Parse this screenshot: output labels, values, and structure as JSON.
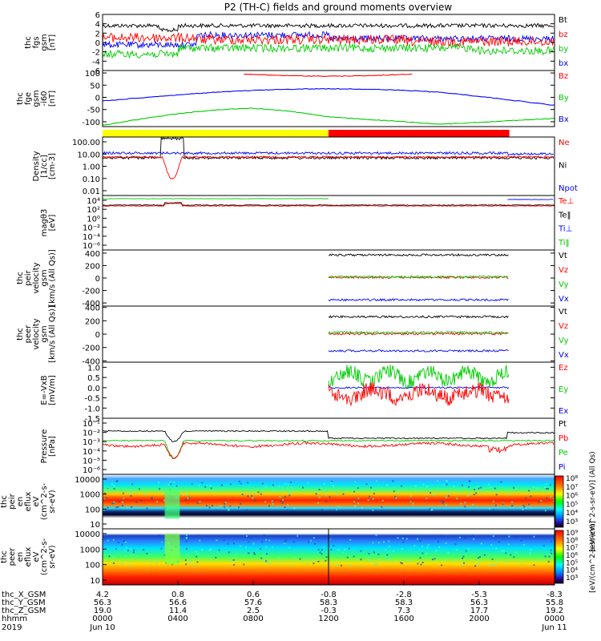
{
  "title": "P2 (TH-C) fields and ground moments overview",
  "chart_data": [
    {
      "type": "line",
      "ylabel_lines": [
        "thc",
        "fgs",
        "gsm",
        "[nT]"
      ],
      "ylim": [
        -6,
        6
      ],
      "yticks": [
        6,
        4,
        2,
        0,
        -2,
        -4,
        -6
      ],
      "ytick_labels": [
        "6",
        "4",
        "2",
        "0",
        "-2",
        "-4",
        "-6"
      ],
      "legend": [
        {
          "name": "Bt",
          "color": "#000000"
        },
        {
          "name": "bz",
          "color": "#ff0000"
        },
        {
          "name": "by",
          "color": "#00cc00"
        },
        {
          "name": "bx",
          "color": "#0000ff"
        }
      ]
    },
    {
      "type": "line",
      "ylabel_lines": [
        "thc",
        "fge",
        "gsm",
        "-i60",
        "[nT]"
      ],
      "ylim": [
        -120,
        110
      ],
      "yticks": [
        100,
        50,
        0,
        -50,
        -100
      ],
      "ytick_labels": [
        "100",
        "50",
        "0",
        "-50",
        "-100"
      ],
      "legend": [
        {
          "name": "Bz",
          "color": "#ff0000"
        },
        {
          "name": "By",
          "color": "#00cc00"
        },
        {
          "name": "Bx",
          "color": "#0000ff"
        }
      ]
    },
    {
      "type": "area",
      "mode_bar": [
        {
          "from_hours": 0,
          "to_hours": 12.0,
          "color": "#ffff00"
        },
        {
          "from_hours": 12.0,
          "to_hours": 21.6,
          "color": "#ff0000"
        }
      ]
    },
    {
      "type": "line",
      "log_scale": true,
      "ylabel_lines": [
        "Density",
        "[1/cc]",
        "[cm-3]"
      ],
      "ytick_labels": [
        "100.00",
        "10.00",
        "1.00",
        "0.10",
        "0.01"
      ],
      "legend": [
        {
          "name": "Ne",
          "color": "#ff0000"
        },
        {
          "name": "Ni",
          "color": "#000000"
        },
        {
          "name": "Npot",
          "color": "#0000ff"
        }
      ]
    },
    {
      "type": "line",
      "log_scale": true,
      "ylabel_lines": [
        "magθ3",
        "[eV]"
      ],
      "ytick_labels": [
        "10⁴",
        "10²",
        "10⁰",
        "10⁻²",
        "10⁻⁴",
        "10⁻⁶"
      ],
      "legend": [
        {
          "name": "Te⊥",
          "color": "#ff0000"
        },
        {
          "name": "Te‖",
          "color": "#000000"
        },
        {
          "name": "Ti⊥",
          "color": "#0000ff"
        },
        {
          "name": "Ti‖",
          "color": "#00cc00"
        }
      ]
    },
    {
      "type": "line",
      "ylabel_lines": [
        "thc",
        "peir",
        "velocity",
        "gsm",
        "[km/s (All Qs)]"
      ],
      "ylim": [
        -450,
        450
      ],
      "yticks": [
        400,
        200,
        0,
        -200,
        -400
      ],
      "ytick_labels": [
        "400",
        "200",
        "0",
        "-200",
        "-400"
      ],
      "legend": [
        {
          "name": "Vt",
          "color": "#000000"
        },
        {
          "name": "Vz",
          "color": "#ff0000"
        },
        {
          "name": "Vy",
          "color": "#00cc00"
        },
        {
          "name": "Vx",
          "color": "#0000ff"
        }
      ],
      "series": [
        {
          "name": "Vt",
          "level": 370
        },
        {
          "name": "Vz",
          "level": 10
        },
        {
          "name": "Vy",
          "level": 20
        },
        {
          "name": "Vx",
          "level": -350
        }
      ]
    },
    {
      "type": "line",
      "ylabel_lines": [
        "thc",
        "peer",
        "velocity",
        "gsm",
        "[km/s (All Qs)]"
      ],
      "ylim": [
        -420,
        420
      ],
      "yticks": [
        400,
        200,
        0,
        -200,
        -400
      ],
      "ytick_labels": [
        "400",
        "200",
        "0",
        "-200",
        "-400"
      ],
      "legend": [
        {
          "name": "Vt",
          "color": "#000000"
        },
        {
          "name": "Vz",
          "color": "#ff0000"
        },
        {
          "name": "Vy",
          "color": "#00cc00"
        },
        {
          "name": "Vx",
          "color": "#0000ff"
        }
      ],
      "series": [
        {
          "name": "Vt",
          "level": 260
        },
        {
          "name": "Vz",
          "level": 5
        },
        {
          "name": "Vy",
          "level": 25
        },
        {
          "name": "Vx",
          "level": -250
        }
      ]
    },
    {
      "type": "line",
      "ylabel_lines": [
        "E=-VxB",
        "[mV/m]"
      ],
      "ylim": [
        -1.5,
        1.25
      ],
      "yticks": [
        1.0,
        0.5,
        0.0,
        -0.5,
        -1.0,
        -1.5
      ],
      "ytick_labels": [
        "1.0",
        "0.5",
        "0.0",
        "-0.5",
        "-1.0",
        "-1.5"
      ],
      "legend": [
        {
          "name": "Ez",
          "color": "#ff0000"
        },
        {
          "name": "Ey",
          "color": "#00cc00"
        },
        {
          "name": "Ex",
          "color": "#0000ff"
        }
      ]
    },
    {
      "type": "line",
      "log_scale": true,
      "ylabel_lines": [
        "Pressure",
        "[nPa]"
      ],
      "ytick_labels": [
        "10⁻¹",
        "10⁻²",
        "10⁻³",
        "10⁻⁴",
        "10⁻⁵",
        "10⁻⁶"
      ],
      "legend": [
        {
          "name": "Pt",
          "color": "#000000"
        },
        {
          "name": "Pb",
          "color": "#ff0000"
        },
        {
          "name": "Pe",
          "color": "#00cc00"
        },
        {
          "name": "Pi",
          "color": "#0000ff"
        }
      ]
    },
    {
      "type": "heatmap",
      "log_scale": true,
      "ylabel_lines": [
        "thc",
        "peir",
        "en",
        "eflux",
        "eV",
        "(cm^2-s-",
        "sr-eV)"
      ],
      "ytick_labels": [
        "10000",
        "1000",
        "100",
        "10"
      ],
      "colorbar": {
        "label": "[eV/(cm^2-s-sr-eV)] (All Qs)",
        "tick_labels": [
          "10⁸",
          "10⁷",
          "10⁶",
          "10⁵",
          "10⁴",
          "10³"
        ]
      }
    },
    {
      "type": "heatmap",
      "log_scale": true,
      "ylabel_lines": [
        "thc",
        "peer",
        "en",
        "eflux",
        "eV",
        "(cm^2-s-",
        "sr-eV)"
      ],
      "ytick_labels": [
        "10000",
        "1000",
        "100",
        "10"
      ],
      "colorbar": {
        "label": "[eV/(cm^2-s-sr-eV)]",
        "tick_labels": [
          "10⁹",
          "10⁸",
          "10⁷",
          "10⁶",
          "10⁵",
          "10⁴",
          "10³"
        ]
      }
    }
  ],
  "xaxis": {
    "row_labels": [
      "thc_X_GSM",
      "thc_Y_GSM",
      "thc_Z_GSM",
      "hhmm",
      "2019"
    ],
    "ticks": [
      {
        "hours": 0,
        "values": [
          "4.2",
          "56.3",
          "19.0",
          "0000",
          "Jun 10"
        ]
      },
      {
        "hours": 4,
        "values": [
          "0.8",
          "56.6",
          "11.4",
          "0400",
          ""
        ]
      },
      {
        "hours": 8,
        "values": [
          "0.6",
          "57.6",
          "2.5",
          "0800",
          ""
        ]
      },
      {
        "hours": 12,
        "values": [
          "-0.8",
          "58.3",
          "-0.3",
          "1200",
          ""
        ]
      },
      {
        "hours": 16,
        "values": [
          "-2.8",
          "58.3",
          "7.3",
          "1600",
          ""
        ]
      },
      {
        "hours": 20,
        "values": [
          "-5.3",
          "56.3",
          "17.7",
          "2000",
          ""
        ]
      },
      {
        "hours": 24,
        "values": [
          "-8.3",
          "55.8",
          "19.2",
          "0000",
          "Jun 11"
        ]
      }
    ]
  }
}
